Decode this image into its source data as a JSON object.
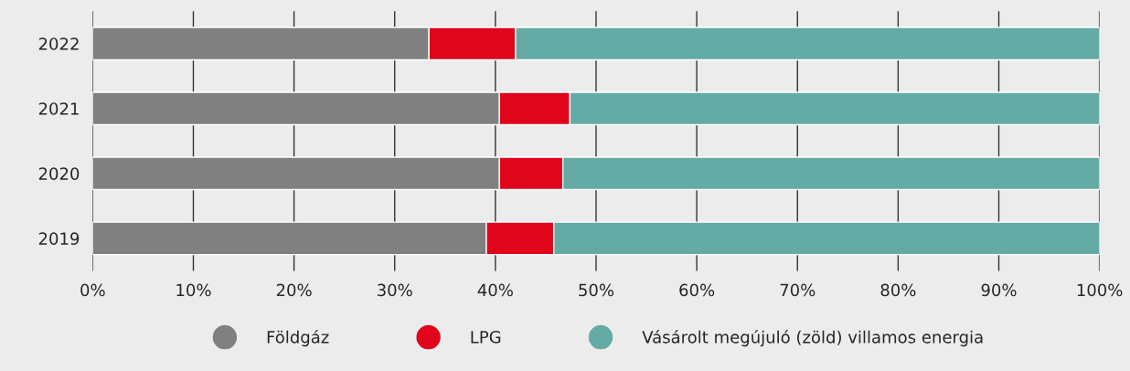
{
  "chart_data": {
    "type": "bar",
    "orientation": "horizontal",
    "stacked": true,
    "categories": [
      "2022",
      "2021",
      "2020",
      "2019"
    ],
    "series": [
      {
        "name": "Földgáz",
        "color": "#808080",
        "values": [
          33.4,
          40.4,
          40.4,
          39.1
        ]
      },
      {
        "name": "LPG",
        "color": "#e0051b",
        "values": [
          8.6,
          7.0,
          6.3,
          6.7
        ]
      },
      {
        "name": "Vásárolt megújuló (zöld) villamos energia",
        "color": "#64aaa5",
        "values": [
          58.0,
          52.6,
          53.3,
          54.2
        ]
      }
    ],
    "xlim": [
      0,
      100
    ],
    "xticks": [
      {
        "value": 0,
        "label": "0%"
      },
      {
        "value": 10,
        "label": "10%"
      },
      {
        "value": 20,
        "label": "20%"
      },
      {
        "value": 30,
        "label": "30%"
      },
      {
        "value": 40,
        "label": "40%"
      },
      {
        "value": 50,
        "label": "50%"
      },
      {
        "value": 60,
        "label": "60%"
      },
      {
        "value": 70,
        "label": "70%"
      },
      {
        "value": 80,
        "label": "80%"
      },
      {
        "value": 90,
        "label": "90%"
      },
      {
        "value": 100,
        "label": "100%"
      }
    ],
    "grid": "x",
    "legend": "bottom",
    "marker": "circle"
  }
}
